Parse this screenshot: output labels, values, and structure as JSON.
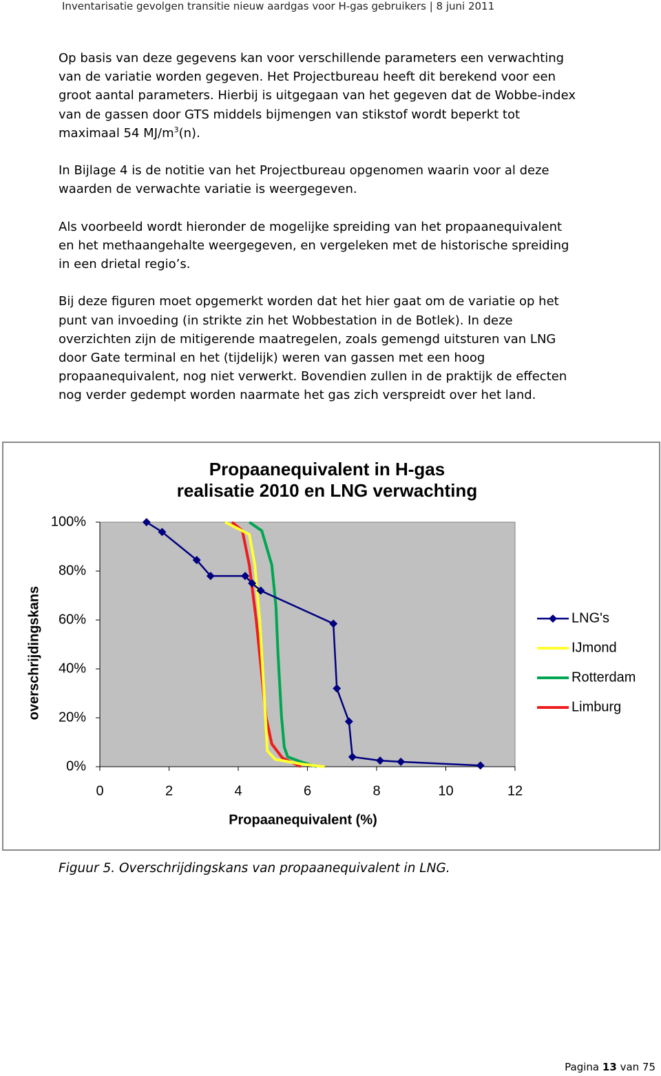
{
  "header": {
    "title": "Inventarisatie gevolgen transitie nieuw aardgas voor H-gas gebruikers | 8 juni 2011"
  },
  "body": {
    "paragraphs": [
      [
        "Op basis van deze gegevens kan voor verschillende parameters een verwachting",
        "van de variatie worden gegeven. Het Projectbureau heeft dit berekend voor een",
        "groot aantal parameters. Hierbij is uitgegaan van het gegeven dat de Wobbe-index",
        "van de gassen door GTS middels bijmengen van stikstof wordt beperkt tot",
        {
          "text": "maximaal 54 MJ/m",
          "sup": "3",
          "after": "(n)."
        }
      ],
      [
        "In Bijlage 4 is de notitie van het Projectbureau opgenomen waarin voor al deze",
        "waarden de verwachte variatie is weergegeven."
      ],
      [
        "Als voorbeeld wordt hieronder de mogelijke spreiding van het propaanequivalent",
        "en het methaangehalte weergegeven, en vergeleken met de historische spreiding",
        "in een drietal regio’s."
      ],
      [
        "Bij deze figuren moet opgemerkt worden dat het hier gaat om de variatie op het",
        "punt van invoeding (in strikte zin het Wobbestation in de Botlek). In deze",
        "overzichten zijn de mitigerende maatregelen, zoals gemengd uitsturen van LNG",
        "door Gate terminal en het (tijdelijk) weren van gassen met een hoog",
        "propaanequivalent, nog niet verwerkt. Bovendien zullen in de praktijk de effecten",
        "nog verder gedempt worden naarmate het gas zich verspreidt over het land."
      ]
    ]
  },
  "chart_data": {
    "type": "line",
    "title": "Propaanequivalent in H-gas",
    "subtitle": "realisatie 2010 en LNG verwachting",
    "xlabel": "Propaanequivalent (%)",
    "ylabel": "overschrijdingskans",
    "xlim": [
      0,
      12
    ],
    "xticks": [
      0,
      2,
      4,
      6,
      8,
      10,
      12
    ],
    "ylim": [
      0,
      100
    ],
    "yticks": [
      {
        "value": 0,
        "label": "0%"
      },
      {
        "value": 20,
        "label": "20%"
      },
      {
        "value": 40,
        "label": "40%"
      },
      {
        "value": 60,
        "label": "60%"
      },
      {
        "value": 80,
        "label": "80%"
      },
      {
        "value": 100,
        "label": "100%"
      }
    ],
    "grid": false,
    "legend": "right",
    "plot_background": "#c0c0c0",
    "series": [
      {
        "name": "LNG's",
        "color": "#000080",
        "marker": "diamond",
        "x": [
          1.35,
          1.8,
          2.8,
          3.2,
          4.2,
          4.4,
          4.65,
          6.75,
          6.85,
          7.2,
          7.3,
          8.1,
          8.7,
          11.0
        ],
        "values": [
          100,
          96,
          84.5,
          78,
          78,
          75,
          72,
          58.5,
          32,
          18.5,
          4,
          2.5,
          2,
          0.5
        ]
      },
      {
        "name": "IJmond",
        "color": "#ffff33",
        "marker": "none",
        "x": [
          3.62,
          4.32,
          4.48,
          4.62,
          4.74,
          4.82,
          4.84,
          5.07,
          5.87,
          6.5
        ],
        "values": [
          100,
          95,
          82.5,
          60,
          32,
          12,
          6.5,
          3,
          1,
          0
        ]
      },
      {
        "name": "Rotterdam",
        "color": "#00a651",
        "marker": "none",
        "x": [
          4.32,
          4.68,
          4.97,
          5.09,
          5.15,
          5.25,
          5.33,
          5.43,
          5.87,
          6.27
        ],
        "values": [
          100,
          96.5,
          82.5,
          65.6,
          46,
          20.6,
          8,
          4,
          1.7,
          0
        ]
      },
      {
        "name": "Limburg",
        "color": "#ee1c1c",
        "marker": "none",
        "x": [
          3.82,
          4.12,
          4.32,
          4.52,
          4.68,
          4.8,
          4.97,
          5.27,
          5.81
        ],
        "values": [
          100,
          96.5,
          82.5,
          60,
          37.5,
          20.6,
          9.3,
          3.7,
          0
        ]
      }
    ]
  },
  "caption": "Figuur 5. Overschrijdingskans van propaanequivalent in LNG.",
  "footer": {
    "prefix": "Pagina",
    "page": "13",
    "suffix": "van 75"
  }
}
